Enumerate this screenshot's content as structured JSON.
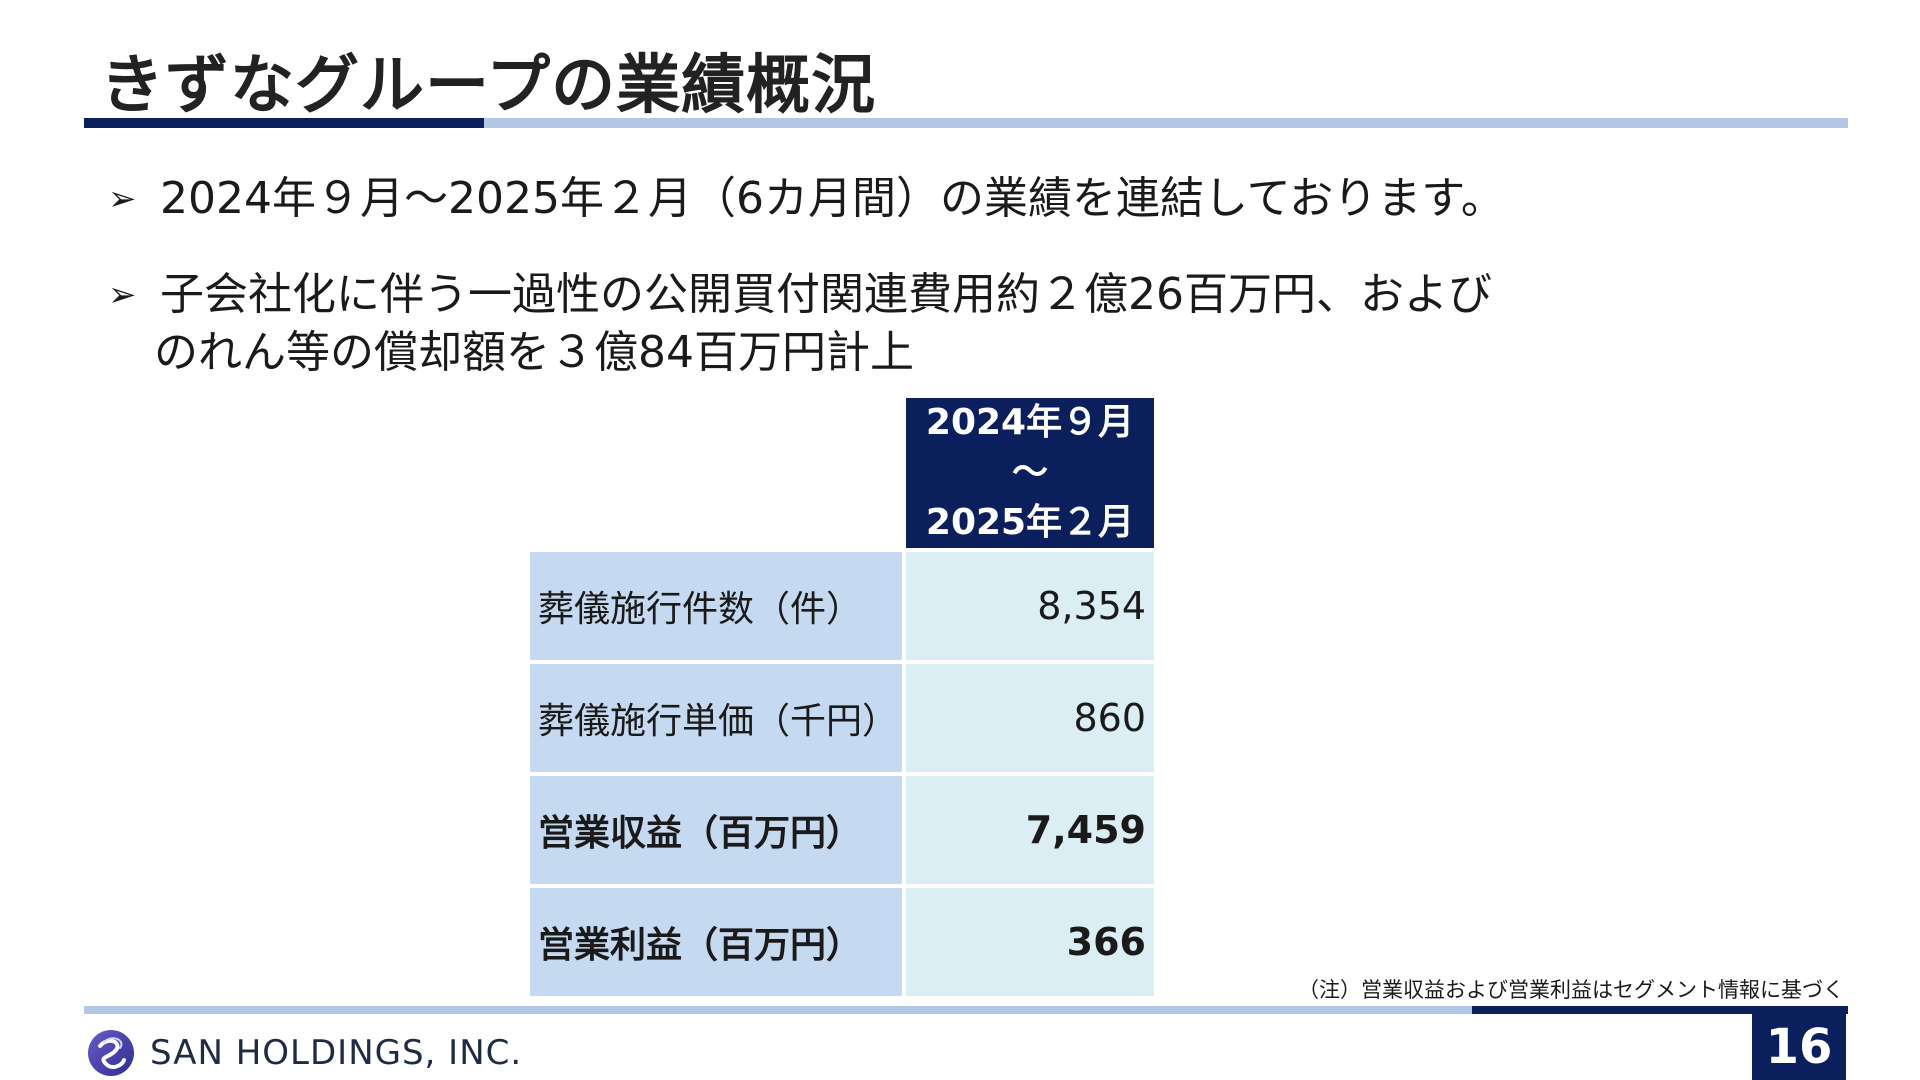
{
  "slide": {
    "title": "きずなグループの業績概況"
  },
  "bullets": [
    {
      "arrow": "➢",
      "text": "2024年９月～2025年２月（6カ月間）の業績を連結しております。"
    },
    {
      "arrow": "➢",
      "line1": "子会社化に伴う一過性の公開買付関連費用約２億26百万円、および",
      "line2": "のれん等の償却額を３億84百万円計上"
    }
  ],
  "table": {
    "period_header": [
      "2024年９月",
      "～",
      "2025年２月"
    ],
    "rows": [
      {
        "label": "葬儀施行件数（件）",
        "value": "8,354",
        "bold": false
      },
      {
        "label": "葬儀施行単価（千円）",
        "value": "860",
        "bold": false
      },
      {
        "label": "営業収益（百万円）",
        "value": "7,459",
        "bold": true
      },
      {
        "label": "営業利益（百万円）",
        "value": "366",
        "bold": true
      }
    ]
  },
  "note": "（注）営業収益および営業利益はセグメント情報に基づく",
  "footer": {
    "company": "SAN HOLDINGS, INC.",
    "page_number": "16"
  },
  "colors": {
    "navy": "#0a1f5c",
    "light_blue_rule": "#b4c7e7",
    "label_cell": "#c5d9f0",
    "value_cell": "#daeef3"
  }
}
